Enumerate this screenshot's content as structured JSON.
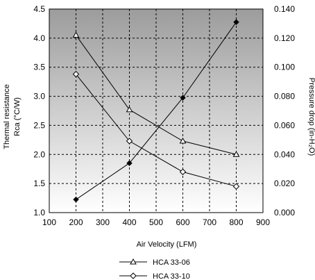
{
  "chart_data": {
    "type": "line",
    "xlabel": "Air Velocity (LFM)",
    "ylabel_left_line1": "Thermal resistance",
    "ylabel_left_line2": "Rca (°C/W)",
    "ylabel_right": "Pressure drop (in-H₂O)",
    "xlim": [
      100,
      900
    ],
    "ylim_left": [
      1.0,
      4.5
    ],
    "ylim_right": [
      0.0,
      0.14
    ],
    "x_ticks": [
      "100",
      "200",
      "300",
      "400",
      "500",
      "600",
      "700",
      "800",
      "900"
    ],
    "y_left_ticks": [
      "1.0",
      "1.5",
      "2.0",
      "2.5",
      "3.0",
      "3.5",
      "4.0",
      "4.5"
    ],
    "y_right_ticks": [
      "0.000",
      "0.020",
      "0.040",
      "0.060",
      "0.080",
      "0.100",
      "0.120",
      "0.140"
    ],
    "grid": true,
    "series": [
      {
        "name": "HCA 33-06",
        "axis": "left",
        "marker": "triangle",
        "x": [
          200,
          400,
          600,
          800
        ],
        "y": [
          4.05,
          2.77,
          2.23,
          2.0
        ]
      },
      {
        "name": "HCA 33-10",
        "axis": "left",
        "marker": "diamond",
        "x": [
          200,
          400,
          600,
          800
        ],
        "y": [
          3.38,
          2.23,
          1.7,
          1.45
        ]
      },
      {
        "axis": "right",
        "marker": "filled-diamond",
        "x": [
          200,
          400,
          600,
          800
        ],
        "y": [
          0.009,
          0.034,
          0.079,
          0.131
        ]
      }
    ],
    "colors": {
      "plot_bg_top": "#9c9c9c",
      "plot_bg_bottom": "#ffffff",
      "grid": "#000000",
      "line": "#000000"
    }
  }
}
